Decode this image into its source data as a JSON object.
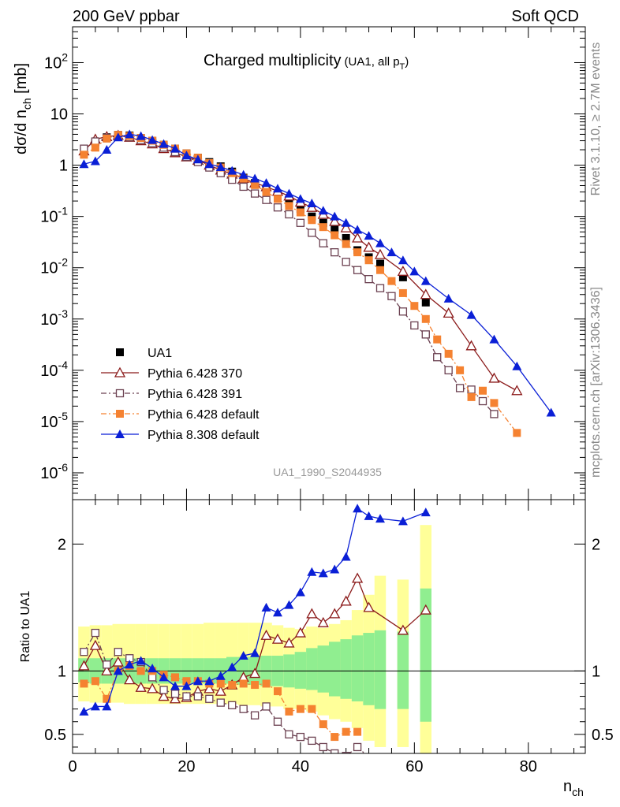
{
  "header": {
    "left_title": "200 GeV ppbar",
    "right_title": "Soft QCD"
  },
  "side_labels": {
    "rivet": "Rivet 3.1.10, ≥ 2.7M events",
    "mcplots": "mcplots.cern.ch [arXiv:1306.3436]"
  },
  "colors": {
    "data": "#000000",
    "p6_370": "#8b1a1a",
    "p6_391": "#6b4050",
    "p6_default": "#f58231",
    "p8_default": "#0a1fd6",
    "band_inner": "#90ee90",
    "band_outer": "#ffff99"
  },
  "chart_data": [
    {
      "type": "scatter",
      "title_main": "Charged multiplicity",
      "title_sub_prefix": "(UA1, all p",
      "title_sub_T": "T",
      "title_sub_suffix": ")",
      "ylabel": "dσ/d n_ch [mb]",
      "yscale": "log",
      "ylim": [
        3e-07,
        500
      ],
      "xlim": [
        0,
        90
      ],
      "analysis_id": "UA1_1990_S2044935",
      "yticks": [
        {
          "exp": "-6",
          "value": 1e-06
        },
        {
          "exp": "-5",
          "value": 1e-05
        },
        {
          "exp": "-4",
          "value": 0.0001
        },
        {
          "exp": "-3",
          "value": 0.001
        },
        {
          "exp": "-2",
          "value": 0.01
        },
        {
          "exp": "-1",
          "value": 0.1
        },
        {
          "plain": "1",
          "value": 1
        },
        {
          "plain": "10",
          "value": 10
        },
        {
          "exp": "2",
          "value": 100
        }
      ],
      "series": [
        {
          "name": "UA1",
          "key": "data",
          "marker": "square",
          "line": "none",
          "x": [
            2,
            4,
            6,
            8,
            10,
            12,
            14,
            16,
            18,
            20,
            22,
            24,
            26,
            28,
            30,
            32,
            34,
            36,
            38,
            40,
            42,
            44,
            46,
            48,
            50,
            52,
            54,
            58,
            62
          ],
          "y": [
            1.8,
            2.8,
            3.5,
            3.9,
            3.8,
            3.4,
            3.0,
            2.5,
            2.1,
            1.7,
            1.4,
            1.15,
            0.95,
            0.75,
            0.57,
            0.45,
            0.34,
            0.25,
            0.18,
            0.14,
            0.1,
            0.075,
            0.055,
            0.038,
            0.022,
            0.016,
            0.012,
            0.0065,
            0.0021
          ]
        },
        {
          "name": "Pythia 6.428 370",
          "key": "p6_370",
          "marker": "triangle-open",
          "line": "solid",
          "x": [
            2,
            4,
            6,
            8,
            10,
            12,
            14,
            16,
            18,
            20,
            22,
            24,
            26,
            28,
            30,
            32,
            34,
            36,
            38,
            40,
            42,
            44,
            46,
            48,
            50,
            52,
            54,
            58,
            62,
            66,
            70,
            74,
            78
          ],
          "y": [
            1.9,
            3.2,
            3.6,
            3.8,
            3.5,
            3.0,
            2.6,
            2.1,
            1.75,
            1.45,
            1.25,
            1.0,
            0.8,
            0.67,
            0.55,
            0.45,
            0.38,
            0.31,
            0.25,
            0.19,
            0.15,
            0.11,
            0.08,
            0.06,
            0.038,
            0.025,
            0.018,
            0.0085,
            0.003,
            0.0013,
            0.0003,
            7e-05,
            4e-05
          ]
        },
        {
          "name": "Pythia 6.428 391",
          "key": "p6_391",
          "marker": "square-open",
          "line": "dashdot",
          "x": [
            2,
            4,
            6,
            8,
            10,
            12,
            14,
            16,
            18,
            20,
            22,
            24,
            26,
            28,
            30,
            32,
            34,
            36,
            38,
            40,
            42,
            44,
            46,
            48,
            50,
            52,
            54,
            56,
            58,
            60,
            62,
            64,
            66,
            68,
            70,
            72,
            74
          ],
          "y": [
            2.1,
            2.9,
            3.4,
            3.7,
            3.5,
            3.1,
            2.7,
            2.2,
            1.8,
            1.45,
            1.15,
            0.9,
            0.7,
            0.52,
            0.38,
            0.28,
            0.21,
            0.15,
            0.11,
            0.075,
            0.048,
            0.03,
            0.02,
            0.013,
            0.009,
            0.006,
            0.004,
            0.0028,
            0.0014,
            0.00075,
            0.0005,
            0.00018,
            0.0001,
            4.5e-05,
            4.2e-05,
            2.5e-05,
            1.4e-05
          ]
        },
        {
          "name": "Pythia 6.428 default",
          "key": "p6_default",
          "marker": "square",
          "line": "dashdot",
          "x": [
            2,
            4,
            6,
            8,
            10,
            12,
            14,
            16,
            18,
            20,
            22,
            24,
            26,
            28,
            30,
            32,
            34,
            36,
            38,
            40,
            42,
            44,
            46,
            48,
            50,
            52,
            54,
            56,
            58,
            60,
            62,
            64,
            66,
            68,
            70,
            72,
            74,
            78
          ],
          "y": [
            1.6,
            2.2,
            3.3,
            3.9,
            3.7,
            3.4,
            3.0,
            2.5,
            2.1,
            1.7,
            1.4,
            1.1,
            0.9,
            0.7,
            0.55,
            0.41,
            0.3,
            0.22,
            0.16,
            0.12,
            0.085,
            0.062,
            0.043,
            0.029,
            0.02,
            0.014,
            0.009,
            0.0055,
            0.0032,
            0.0018,
            0.001,
            0.0004,
            0.00021,
            0.0001,
            3e-05,
            4e-05,
            2.3e-05,
            6e-06
          ]
        },
        {
          "name": "Pythia 8.308 default",
          "key": "p8_default",
          "marker": "triangle",
          "line": "solid",
          "x": [
            2,
            4,
            6,
            8,
            10,
            12,
            14,
            16,
            18,
            20,
            22,
            24,
            26,
            28,
            30,
            32,
            34,
            36,
            38,
            40,
            42,
            44,
            46,
            48,
            50,
            52,
            54,
            56,
            58,
            60,
            62,
            66,
            70,
            74,
            78,
            84
          ],
          "y": [
            1.05,
            1.2,
            2.0,
            3.5,
            4.0,
            3.7,
            3.1,
            2.6,
            2.1,
            1.55,
            1.3,
            1.05,
            0.92,
            0.78,
            0.65,
            0.55,
            0.45,
            0.35,
            0.28,
            0.22,
            0.18,
            0.13,
            0.1,
            0.075,
            0.055,
            0.042,
            0.03,
            0.02,
            0.014,
            0.0085,
            0.0055,
            0.0025,
            0.0012,
            0.0004,
            0.00012,
            1.5e-05
          ]
        }
      ]
    },
    {
      "type": "line",
      "ylabel": "Ratio to UA1",
      "xlabel_main": "n",
      "xlabel_sub": "ch",
      "xlim": [
        0,
        90
      ],
      "ylim": [
        0.35,
        2.35
      ],
      "yticks": [
        {
          "label": "0.5",
          "value": 0.5
        },
        {
          "label": "1",
          "value": 1
        },
        {
          "label": "2",
          "value": 2
        }
      ],
      "xticks": [
        {
          "label": "0",
          "value": 0
        },
        {
          "label": "20",
          "value": 20
        },
        {
          "label": "40",
          "value": 40
        },
        {
          "label": "60",
          "value": 60
        },
        {
          "label": "80",
          "value": 80
        }
      ],
      "bands": [
        {
          "x0": 1,
          "x1": 3,
          "inner": [
            0.91,
            1.1
          ],
          "outer": [
            0.76,
            1.35
          ]
        },
        {
          "x0": 3,
          "x1": 5,
          "inner": [
            0.9,
            1.1
          ],
          "outer": [
            0.75,
            1.36
          ]
        },
        {
          "x0": 5,
          "x1": 7,
          "inner": [
            0.9,
            1.1
          ],
          "outer": [
            0.75,
            1.36
          ]
        },
        {
          "x0": 7,
          "x1": 9,
          "inner": [
            0.9,
            1.1
          ],
          "outer": [
            0.75,
            1.37
          ]
        },
        {
          "x0": 9,
          "x1": 11,
          "inner": [
            0.9,
            1.1
          ],
          "outer": [
            0.74,
            1.37
          ]
        },
        {
          "x0": 11,
          "x1": 13,
          "inner": [
            0.9,
            1.1
          ],
          "outer": [
            0.74,
            1.37
          ]
        },
        {
          "x0": 13,
          "x1": 15,
          "inner": [
            0.9,
            1.1
          ],
          "outer": [
            0.74,
            1.37
          ]
        },
        {
          "x0": 15,
          "x1": 17,
          "inner": [
            0.9,
            1.1
          ],
          "outer": [
            0.74,
            1.37
          ]
        },
        {
          "x0": 17,
          "x1": 19,
          "inner": [
            0.9,
            1.1
          ],
          "outer": [
            0.74,
            1.37
          ]
        },
        {
          "x0": 19,
          "x1": 21,
          "inner": [
            0.9,
            1.1
          ],
          "outer": [
            0.74,
            1.37
          ]
        },
        {
          "x0": 21,
          "x1": 23,
          "inner": [
            0.9,
            1.1
          ],
          "outer": [
            0.74,
            1.37
          ]
        },
        {
          "x0": 23,
          "x1": 25,
          "inner": [
            0.9,
            1.1
          ],
          "outer": [
            0.74,
            1.38
          ]
        },
        {
          "x0": 25,
          "x1": 27,
          "inner": [
            0.9,
            1.1
          ],
          "outer": [
            0.74,
            1.38
          ]
        },
        {
          "x0": 27,
          "x1": 29,
          "inner": [
            0.9,
            1.11
          ],
          "outer": [
            0.74,
            1.38
          ]
        },
        {
          "x0": 29,
          "x1": 31,
          "inner": [
            0.89,
            1.11
          ],
          "outer": [
            0.73,
            1.38
          ]
        },
        {
          "x0": 31,
          "x1": 33,
          "inner": [
            0.89,
            1.11
          ],
          "outer": [
            0.73,
            1.38
          ]
        },
        {
          "x0": 33,
          "x1": 35,
          "inner": [
            0.88,
            1.12
          ],
          "outer": [
            0.72,
            1.38
          ]
        },
        {
          "x0": 35,
          "x1": 37,
          "inner": [
            0.88,
            1.12
          ],
          "outer": [
            0.72,
            1.36
          ]
        },
        {
          "x0": 37,
          "x1": 39,
          "inner": [
            0.87,
            1.13
          ],
          "outer": [
            0.7,
            1.34
          ]
        },
        {
          "x0": 39,
          "x1": 41,
          "inner": [
            0.86,
            1.15
          ],
          "outer": [
            0.7,
            1.33
          ]
        },
        {
          "x0": 41,
          "x1": 43,
          "inner": [
            0.85,
            1.18
          ],
          "outer": [
            0.68,
            1.35
          ]
        },
        {
          "x0": 43,
          "x1": 45,
          "inner": [
            0.83,
            1.2
          ],
          "outer": [
            0.65,
            1.34
          ]
        },
        {
          "x0": 45,
          "x1": 47,
          "inner": [
            0.8,
            1.23
          ],
          "outer": [
            0.62,
            1.37
          ]
        },
        {
          "x0": 47,
          "x1": 49,
          "inner": [
            0.78,
            1.25
          ],
          "outer": [
            0.6,
            1.4
          ]
        },
        {
          "x0": 49,
          "x1": 51,
          "inner": [
            0.76,
            1.28
          ],
          "outer": [
            0.55,
            1.48
          ]
        },
        {
          "x0": 51,
          "x1": 53,
          "inner": [
            0.73,
            1.3
          ],
          "outer": [
            0.45,
            1.6
          ]
        },
        {
          "x0": 53,
          "x1": 55,
          "inner": [
            0.7,
            1.32
          ],
          "outer": [
            0.4,
            1.75
          ]
        },
        {
          "x0": 57,
          "x1": 59,
          "inner": [
            0.7,
            1.31
          ],
          "outer": [
            0.4,
            1.72
          ]
        },
        {
          "x0": 61,
          "x1": 63,
          "inner": [
            0.6,
            1.65
          ],
          "outer": [
            0.35,
            2.15
          ]
        }
      ],
      "series": [
        {
          "name": "Pythia 6.428 370",
          "key": "p6_370",
          "marker": "triangle-open",
          "line": "solid",
          "x": [
            2,
            4,
            6,
            8,
            10,
            12,
            14,
            16,
            18,
            20,
            22,
            24,
            26,
            28,
            30,
            32,
            34,
            36,
            38,
            40,
            42,
            44,
            46,
            48,
            50,
            52,
            58,
            62
          ],
          "y": [
            1.04,
            1.2,
            1.0,
            1.07,
            0.93,
            0.87,
            0.86,
            0.8,
            0.78,
            0.79,
            0.84,
            0.86,
            0.84,
            0.89,
            0.95,
            0.98,
            1.28,
            1.25,
            1.22,
            1.3,
            1.45,
            1.38,
            1.45,
            1.55,
            1.73,
            1.5,
            1.32,
            1.48
          ]
        },
        {
          "name": "Pythia 6.428 391",
          "key": "p6_391",
          "marker": "square-open",
          "line": "dashdot",
          "x": [
            2,
            4,
            6,
            8,
            10,
            12,
            14,
            16,
            18,
            20,
            22,
            24,
            26,
            28,
            30,
            32,
            34,
            36,
            38,
            40,
            42,
            44,
            46,
            48,
            50,
            52
          ],
          "y": [
            1.15,
            1.3,
            1.05,
            1.15,
            1.1,
            1.07,
            0.95,
            0.85,
            0.82,
            0.8,
            0.8,
            0.78,
            0.75,
            0.73,
            0.7,
            0.65,
            0.72,
            0.6,
            0.5,
            0.48,
            0.45,
            0.4,
            0.35,
            0.33,
            0.4,
            0.32
          ]
        },
        {
          "name": "Pythia 6.428 default",
          "key": "p6_default",
          "marker": "square",
          "line": "dashdot",
          "x": [
            2,
            4,
            6,
            8,
            10,
            12,
            14,
            16,
            18,
            20,
            22,
            24,
            26,
            28,
            30,
            32,
            34,
            36,
            38,
            40,
            42,
            44,
            46,
            48,
            50
          ],
          "y": [
            0.9,
            0.92,
            0.78,
            1.0,
            1.04,
            1.0,
            1.0,
            0.97,
            0.95,
            0.92,
            0.92,
            0.9,
            0.9,
            0.89,
            0.9,
            0.89,
            0.9,
            0.84,
            0.68,
            0.7,
            0.7,
            0.58,
            0.48,
            0.52,
            0.52
          ]
        },
        {
          "name": "Pythia 8.308 default",
          "key": "p8_default",
          "marker": "triangle",
          "line": "solid",
          "x": [
            2,
            4,
            6,
            8,
            10,
            12,
            14,
            16,
            18,
            20,
            22,
            24,
            26,
            28,
            30,
            32,
            34,
            36,
            38,
            40,
            42,
            44,
            46,
            48,
            50,
            52,
            54,
            58,
            62
          ],
          "y": [
            0.68,
            0.72,
            0.72,
            1.0,
            1.05,
            1.08,
            1.02,
            0.95,
            0.88,
            0.88,
            0.92,
            0.92,
            0.96,
            1.03,
            1.12,
            1.14,
            1.5,
            1.46,
            1.52,
            1.62,
            1.78,
            1.77,
            1.8,
            1.9,
            2.28,
            2.22,
            2.2,
            2.18,
            2.25
          ]
        }
      ]
    }
  ]
}
